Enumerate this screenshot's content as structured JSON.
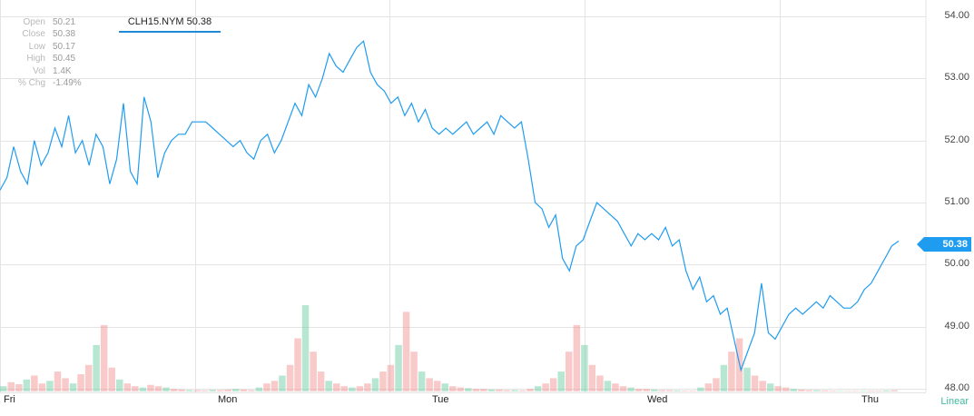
{
  "ohlc": [
    {
      "label": "Open",
      "value": "50.21"
    },
    {
      "label": "Close",
      "value": "50.38"
    },
    {
      "label": "Low",
      "value": "50.17"
    },
    {
      "label": "High",
      "value": "50.45"
    },
    {
      "label": "Vol",
      "value": "1.4K"
    },
    {
      "label": "% Chg",
      "value": "-1.49%"
    }
  ],
  "ticker": "CLH15.NYM 50.38",
  "last_price": "50.38",
  "scale_label": "Linear",
  "colors": {
    "line": "#1f9cf0",
    "grid": "#e4e4e4",
    "vol_up": "#5fc79e",
    "vol_down": "#f08a8a"
  },
  "chart_data": {
    "type": "line",
    "title": "",
    "xlabel": "",
    "ylabel": "",
    "x_ticks": [
      "Fri",
      "Mon",
      "Tue",
      "Wed",
      "Thu"
    ],
    "y_ticks": [
      "54.00",
      "53.00",
      "52.00",
      "51.00",
      "50.00",
      "49.00",
      "48.00"
    ],
    "ylim": [
      48.0,
      54.0
    ],
    "grid": true,
    "series": [
      {
        "values": [
          51.2,
          51.4,
          51.9,
          51.5,
          51.3,
          52.0,
          51.6,
          51.8,
          52.2,
          51.9,
          52.4,
          51.8,
          52.0,
          51.6,
          52.1,
          51.9,
          51.3,
          51.7,
          52.6,
          51.5,
          51.3,
          52.7,
          52.3,
          51.4,
          51.8,
          52.0,
          52.1,
          52.1,
          52.3,
          52.3,
          52.3,
          52.2,
          52.1,
          52.0,
          51.9,
          52.0,
          51.8,
          51.7,
          52.0,
          52.1,
          51.8,
          52.0,
          52.3,
          52.6,
          52.4,
          52.9,
          52.7,
          53.0,
          53.4,
          53.2,
          53.1,
          53.3,
          53.5,
          53.6,
          53.1,
          52.9,
          52.8,
          52.6,
          52.7,
          52.4,
          52.6,
          52.3,
          52.5,
          52.2,
          52.1,
          52.2,
          52.1,
          52.2,
          52.3,
          52.1,
          52.2,
          52.3,
          52.1,
          52.4,
          52.3,
          52.2,
          52.3,
          51.7,
          51.0,
          50.9,
          50.6,
          50.8,
          50.1,
          49.9,
          50.3,
          50.4,
          50.7,
          51.0,
          50.9,
          50.8,
          50.7,
          50.5,
          50.3,
          50.5,
          50.4,
          50.5,
          50.4,
          50.6,
          50.3,
          50.4,
          49.9,
          49.6,
          49.8,
          49.4,
          49.5,
          49.2,
          49.3,
          48.8,
          48.3,
          48.6,
          48.9,
          49.7,
          48.9,
          48.8,
          49.0,
          49.2,
          49.3,
          49.2,
          49.3,
          49.4,
          49.3,
          49.5,
          49.4,
          49.3,
          49.3,
          49.4,
          49.6,
          49.7,
          49.9,
          50.1,
          50.3,
          50.38
        ]
      }
    ],
    "volume_series": {
      "values": [
        40,
        70,
        55,
        90,
        120,
        60,
        80,
        150,
        100,
        60,
        130,
        200,
        350,
        500,
        180,
        90,
        60,
        40,
        30,
        50,
        40,
        30,
        20,
        15,
        10,
        10,
        8,
        12,
        10,
        15,
        20,
        15,
        10,
        30,
        60,
        80,
        120,
        200,
        400,
        650,
        300,
        150,
        80,
        60,
        40,
        30,
        40,
        60,
        100,
        150,
        200,
        350,
        600,
        300,
        150,
        100,
        80,
        60,
        40,
        30,
        25,
        20,
        20,
        15,
        15,
        10,
        10,
        8,
        20,
        40,
        60,
        100,
        150,
        300,
        500,
        350,
        200,
        120,
        80,
        60,
        40,
        30,
        20,
        20,
        15,
        10,
        10,
        8,
        6,
        6,
        30,
        60,
        100,
        200,
        300,
        400,
        180,
        120,
        80,
        60,
        40,
        30,
        20,
        15,
        10,
        10,
        8,
        6,
        5,
        5,
        5,
        5,
        6,
        6,
        8,
        10
      ]
    }
  }
}
